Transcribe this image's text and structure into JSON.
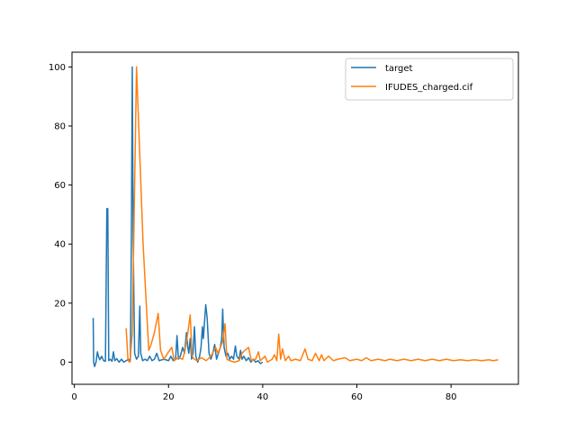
{
  "chart_data": {
    "type": "line",
    "xlim": [
      -0.5,
      94.3
    ],
    "ylim": [
      -7.5,
      105
    ],
    "xticks": [
      0,
      20,
      40,
      60,
      80
    ],
    "yticks": [
      0,
      20,
      40,
      60,
      80,
      100
    ],
    "legend": {
      "placement": "top-right"
    },
    "grid": false,
    "series": [
      {
        "name": "target",
        "color": "#1f77b4",
        "points": [
          [
            4.0,
            15
          ],
          [
            4.1,
            0
          ],
          [
            4.3,
            -1.5
          ],
          [
            4.6,
            0
          ],
          [
            4.9,
            3.5
          ],
          [
            5.1,
            2
          ],
          [
            5.4,
            0.8
          ],
          [
            5.8,
            2
          ],
          [
            6.2,
            0.5
          ],
          [
            6.6,
            0.3
          ],
          [
            6.9,
            52
          ],
          [
            7.1,
            52
          ],
          [
            7.3,
            0.5
          ],
          [
            7.6,
            1
          ],
          [
            8.0,
            0.3
          ],
          [
            8.3,
            3.5
          ],
          [
            8.6,
            0.5
          ],
          [
            9.0,
            1.2
          ],
          [
            9.5,
            0
          ],
          [
            10.0,
            1
          ],
          [
            10.5,
            0
          ],
          [
            11.0,
            0.5
          ],
          [
            11.5,
            1
          ],
          [
            11.9,
            0.5
          ],
          [
            12.1,
            40
          ],
          [
            12.3,
            100
          ],
          [
            12.5,
            40
          ],
          [
            12.8,
            3
          ],
          [
            13.2,
            1
          ],
          [
            13.6,
            2
          ],
          [
            13.9,
            19
          ],
          [
            14.1,
            3
          ],
          [
            14.5,
            0.5
          ],
          [
            15.0,
            1
          ],
          [
            15.5,
            0.5
          ],
          [
            16.0,
            2
          ],
          [
            16.5,
            0.5
          ],
          [
            17.0,
            1
          ],
          [
            17.5,
            3
          ],
          [
            18.0,
            0.5
          ],
          [
            19.0,
            1
          ],
          [
            20.0,
            0.5
          ],
          [
            20.5,
            2
          ],
          [
            21.0,
            0.5
          ],
          [
            21.5,
            1
          ],
          [
            21.8,
            9
          ],
          [
            22.1,
            1
          ],
          [
            22.5,
            2
          ],
          [
            23.0,
            5
          ],
          [
            23.4,
            3
          ],
          [
            23.8,
            10
          ],
          [
            24.1,
            5
          ],
          [
            24.3,
            3
          ],
          [
            24.6,
            8
          ],
          [
            24.9,
            1
          ],
          [
            25.2,
            3
          ],
          [
            25.5,
            12
          ],
          [
            25.8,
            2
          ],
          [
            26.2,
            0
          ],
          [
            26.6,
            2
          ],
          [
            26.9,
            5
          ],
          [
            27.2,
            12
          ],
          [
            27.4,
            8
          ],
          [
            27.9,
            19.5
          ],
          [
            28.2,
            15
          ],
          [
            28.6,
            3
          ],
          [
            29.0,
            1
          ],
          [
            29.4,
            3
          ],
          [
            29.8,
            6
          ],
          [
            30.2,
            1
          ],
          [
            30.6,
            3
          ],
          [
            31.0,
            5
          ],
          [
            31.3,
            8
          ],
          [
            31.5,
            18
          ],
          [
            31.8,
            5
          ],
          [
            32.2,
            2
          ],
          [
            32.6,
            3
          ],
          [
            33.0,
            1
          ],
          [
            33.4,
            2
          ],
          [
            33.8,
            1
          ],
          [
            34.2,
            5.5
          ],
          [
            34.5,
            2
          ],
          [
            35.0,
            1
          ],
          [
            35.3,
            4
          ],
          [
            35.6,
            1
          ],
          [
            36.0,
            2
          ],
          [
            36.5,
            0.5
          ],
          [
            37.0,
            1.5
          ],
          [
            37.5,
            0
          ],
          [
            38.0,
            1
          ],
          [
            38.5,
            0
          ],
          [
            39.0,
            0.5
          ],
          [
            39.5,
            -0.5
          ],
          [
            40.0,
            0
          ]
        ]
      },
      {
        "name": "IFUDES_charged.cif",
        "color": "#ff7f0e",
        "points": [
          [
            11.0,
            11.5
          ],
          [
            11.4,
            0.5
          ],
          [
            11.8,
            0
          ],
          [
            12.3,
            10
          ],
          [
            13.2,
            100
          ],
          [
            14.6,
            40
          ],
          [
            15.8,
            4
          ],
          [
            16.3,
            6
          ],
          [
            17.0,
            10
          ],
          [
            17.8,
            16.5
          ],
          [
            18.3,
            4
          ],
          [
            19.0,
            1
          ],
          [
            20.0,
            3.5
          ],
          [
            20.7,
            5
          ],
          [
            21.2,
            0.5
          ],
          [
            22.0,
            1.5
          ],
          [
            23.0,
            1
          ],
          [
            23.5,
            4
          ],
          [
            24.1,
            10
          ],
          [
            24.6,
            16
          ],
          [
            25.0,
            2
          ],
          [
            25.5,
            1
          ],
          [
            26.0,
            0.5
          ],
          [
            27.0,
            1.5
          ],
          [
            28.0,
            0.5
          ],
          [
            29.0,
            2
          ],
          [
            30.0,
            5
          ],
          [
            30.5,
            3
          ],
          [
            31.5,
            7
          ],
          [
            32.0,
            13
          ],
          [
            32.4,
            1
          ],
          [
            33.0,
            0.5
          ],
          [
            34.0,
            0
          ],
          [
            35.0,
            0.5
          ],
          [
            35.6,
            3
          ],
          [
            36.2,
            4
          ],
          [
            37.0,
            5
          ],
          [
            37.6,
            0.5
          ],
          [
            38.5,
            1
          ],
          [
            39.1,
            3.5
          ],
          [
            39.5,
            0.5
          ],
          [
            40.5,
            2
          ],
          [
            41.0,
            0
          ],
          [
            41.5,
            0.5
          ],
          [
            42.0,
            1
          ],
          [
            42.5,
            2.5
          ],
          [
            43.0,
            0.5
          ],
          [
            43.4,
            9.5
          ],
          [
            43.8,
            1
          ],
          [
            44.2,
            4.5
          ],
          [
            44.8,
            0.5
          ],
          [
            45.5,
            2
          ],
          [
            46.0,
            0.5
          ],
          [
            47.0,
            1
          ],
          [
            48.0,
            0.5
          ],
          [
            49.0,
            4.5
          ],
          [
            49.6,
            1
          ],
          [
            50.5,
            0.5
          ],
          [
            51.2,
            3
          ],
          [
            52.0,
            0.5
          ],
          [
            52.5,
            2.5
          ],
          [
            53.0,
            0.5
          ],
          [
            54.0,
            2
          ],
          [
            55.0,
            0.5
          ],
          [
            56.0,
            1
          ],
          [
            57.5,
            1.5
          ],
          [
            58.5,
            0.5
          ],
          [
            60.0,
            1
          ],
          [
            61.0,
            0.5
          ],
          [
            62.0,
            1.5
          ],
          [
            63.0,
            0.5
          ],
          [
            64.5,
            1
          ],
          [
            66.0,
            0.5
          ],
          [
            67.0,
            1
          ],
          [
            68.5,
            0.5
          ],
          [
            70.0,
            1
          ],
          [
            71.5,
            0.5
          ],
          [
            73.0,
            1
          ],
          [
            74.5,
            0.5
          ],
          [
            76.0,
            1
          ],
          [
            77.5,
            0.5
          ],
          [
            79.0,
            1
          ],
          [
            80.5,
            0.5
          ],
          [
            82.0,
            0.8
          ],
          [
            83.5,
            0.5
          ],
          [
            85.0,
            0.8
          ],
          [
            86.5,
            0.5
          ],
          [
            88.0,
            0.8
          ],
          [
            89.0,
            0.5
          ],
          [
            90.0,
            0.8
          ]
        ]
      }
    ]
  }
}
